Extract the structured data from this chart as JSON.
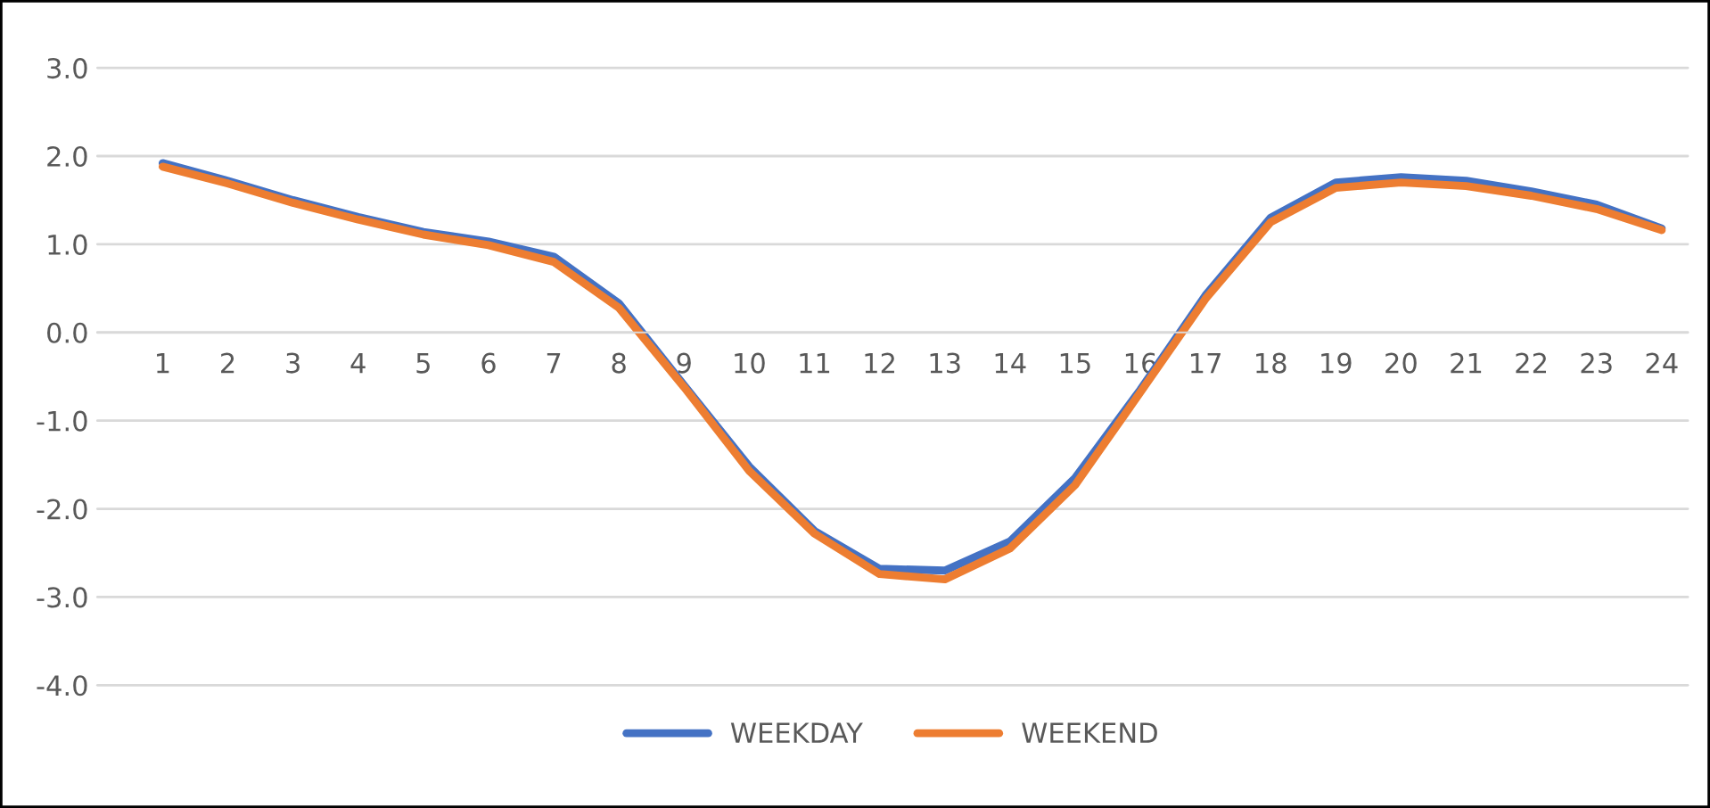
{
  "chart_data": {
    "type": "line",
    "categories": [
      "1",
      "2",
      "3",
      "4",
      "5",
      "6",
      "7",
      "8",
      "9",
      "10",
      "11",
      "12",
      "13",
      "14",
      "15",
      "16",
      "17",
      "18",
      "19",
      "20",
      "21",
      "22",
      "23",
      "24"
    ],
    "series": [
      {
        "name": "WEEKDAY",
        "color": "#4472c4",
        "values": [
          1.92,
          1.72,
          1.5,
          1.31,
          1.14,
          1.03,
          0.86,
          0.33,
          -0.6,
          -1.52,
          -2.25,
          -2.68,
          -2.7,
          -2.37,
          -1.65,
          -0.65,
          0.42,
          1.3,
          1.7,
          1.76,
          1.72,
          1.6,
          1.45,
          1.18
        ]
      },
      {
        "name": "WEEKEND",
        "color": "#ed7d31",
        "values": [
          1.88,
          1.69,
          1.47,
          1.28,
          1.11,
          0.99,
          0.8,
          0.28,
          -0.62,
          -1.57,
          -2.28,
          -2.74,
          -2.8,
          -2.45,
          -1.73,
          -0.68,
          0.38,
          1.25,
          1.64,
          1.7,
          1.66,
          1.55,
          1.4,
          1.16
        ]
      }
    ],
    "ylim": [
      -4,
      3
    ],
    "yticks": [
      {
        "value": -4,
        "label": "-4.0"
      },
      {
        "value": -3,
        "label": "-3.0"
      },
      {
        "value": -2,
        "label": "-2.0"
      },
      {
        "value": -1,
        "label": "-1.0"
      },
      {
        "value": 0,
        "label": "0.0"
      },
      {
        "value": 1,
        "label": "1.0"
      },
      {
        "value": 2,
        "label": "2.0"
      },
      {
        "value": 3,
        "label": "3.0"
      }
    ],
    "grid": "y",
    "legend": "bottom",
    "marker": "none",
    "line_style": "solid"
  }
}
